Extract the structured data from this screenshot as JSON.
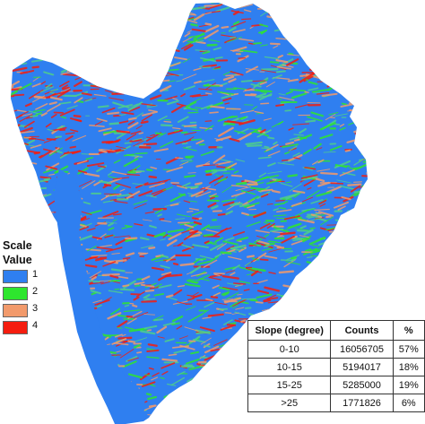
{
  "legend": {
    "title_line1": "Scale",
    "title_line2": "Value",
    "items": [
      {
        "label": "1",
        "color": "#2f7ff0"
      },
      {
        "label": "2",
        "color": "#2ee62e"
      },
      {
        "label": "3",
        "color": "#f29a6b"
      },
      {
        "label": "4",
        "color": "#f51d0f"
      }
    ]
  },
  "table": {
    "headers": [
      "Slope (degree)",
      "Counts",
      "%"
    ],
    "rows": [
      {
        "slope": "0-10",
        "count": "16056705",
        "percent": "57%"
      },
      {
        "slope": "10-15",
        "count": "5194017",
        "percent": "18%"
      },
      {
        "slope": "15-25",
        "count": "5285000",
        "percent": "19%"
      },
      {
        "slope": ">25",
        "count": "1771826",
        "percent": "6%"
      }
    ]
  },
  "map": {
    "region_color": "#2f7ff0",
    "texture_colors": [
      "#2ee62e",
      "#4fcf8a",
      "#f29a6b",
      "#f51d0f"
    ]
  }
}
